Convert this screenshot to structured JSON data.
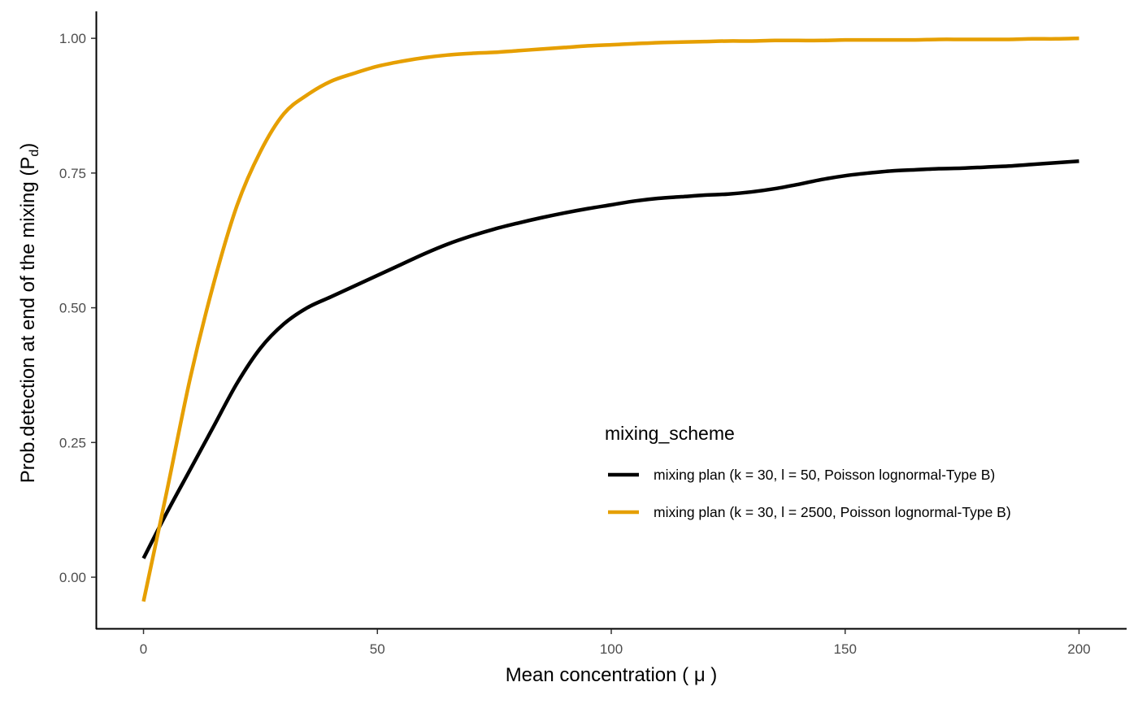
{
  "chart_data": {
    "type": "line",
    "title": "",
    "xlabel": "Mean concentration ( μ )",
    "ylabel_main": "Prob.detection at end of the mixing (P",
    "ylabel_sub": "d",
    "ylabel_close": ")",
    "xlim": [
      -10,
      210
    ],
    "ylim": [
      -0.095,
      1.05
    ],
    "x_ticks": [
      0,
      50,
      100,
      150,
      200
    ],
    "x_tick_labels": [
      "0",
      "50",
      "100",
      "150",
      "200"
    ],
    "y_ticks": [
      0.0,
      0.25,
      0.5,
      0.75,
      1.0
    ],
    "y_tick_labels": [
      "0.00",
      "0.25",
      "0.50",
      "0.75",
      "1.00"
    ],
    "grid": false,
    "legend": {
      "title": "mixing_scheme",
      "placement": "inside-right"
    },
    "series": [
      {
        "name": "mixing plan (k = 30, l = 50, Poisson lognormal-Type B)",
        "color": "#000000",
        "x": [
          0,
          5,
          10,
          15,
          20,
          25,
          30,
          35,
          40,
          45,
          50,
          55,
          60,
          65,
          70,
          75,
          80,
          85,
          90,
          95,
          100,
          105,
          110,
          115,
          120,
          125,
          130,
          135,
          140,
          145,
          150,
          155,
          160,
          165,
          170,
          175,
          180,
          185,
          190,
          195,
          200
        ],
        "y": [
          0.035,
          0.12,
          0.2,
          0.28,
          0.36,
          0.425,
          0.47,
          0.5,
          0.52,
          0.54,
          0.56,
          0.58,
          0.6,
          0.618,
          0.633,
          0.646,
          0.657,
          0.667,
          0.676,
          0.684,
          0.691,
          0.698,
          0.703,
          0.706,
          0.709,
          0.711,
          0.715,
          0.721,
          0.729,
          0.738,
          0.745,
          0.75,
          0.754,
          0.756,
          0.758,
          0.759,
          0.761,
          0.763,
          0.766,
          0.769,
          0.772
        ]
      },
      {
        "name": "mixing plan (k = 30, l = 2500, Poisson lognormal-Type B)",
        "color": "#E69F00",
        "x": [
          0,
          5,
          10,
          15,
          20,
          25,
          30,
          35,
          40,
          45,
          50,
          55,
          60,
          65,
          70,
          75,
          80,
          85,
          90,
          95,
          100,
          105,
          110,
          115,
          120,
          125,
          130,
          135,
          140,
          145,
          150,
          155,
          160,
          165,
          170,
          175,
          180,
          185,
          190,
          195,
          200
        ],
        "y": [
          -0.045,
          0.16,
          0.37,
          0.545,
          0.69,
          0.79,
          0.86,
          0.895,
          0.92,
          0.935,
          0.948,
          0.957,
          0.964,
          0.969,
          0.972,
          0.974,
          0.977,
          0.98,
          0.983,
          0.986,
          0.988,
          0.99,
          0.992,
          0.993,
          0.994,
          0.995,
          0.995,
          0.996,
          0.996,
          0.996,
          0.997,
          0.997,
          0.997,
          0.997,
          0.998,
          0.998,
          0.998,
          0.998,
          0.999,
          0.999,
          1.0
        ]
      }
    ]
  }
}
